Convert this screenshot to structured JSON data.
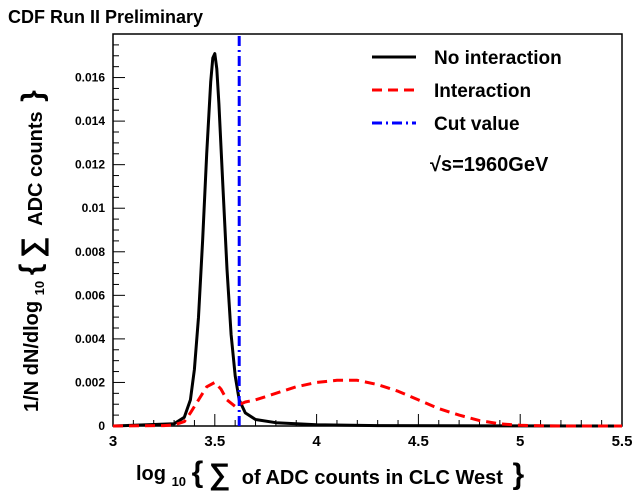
{
  "chart_data": {
    "type": "line",
    "title": "CDF Run II Preliminary",
    "annotation": "√s=1960GeV",
    "xlabel": {
      "prefix": "log",
      "sub": "10",
      "sigma": "∑",
      "body": "of ADC counts in CLC West"
    },
    "ylabel": {
      "prefix": "1/N dN/dlog",
      "sub": "10",
      "sigma": "∑",
      "body": "ADC counts"
    },
    "xlim": [
      3,
      5.5
    ],
    "ylim": [
      0,
      0.018
    ],
    "x_ticks": [
      3,
      3.5,
      4,
      4.5,
      5,
      5.5
    ],
    "x_tick_labels": [
      "3",
      "3.5",
      "4",
      "4.5",
      "5",
      "5.5"
    ],
    "y_ticks": [
      0,
      0.002,
      0.004,
      0.006,
      0.008,
      0.01,
      0.012,
      0.014,
      0.016
    ],
    "y_tick_labels": [
      "0",
      "0.002",
      "0.004",
      "0.006",
      "0.008",
      "0.01",
      "0.012",
      "0.014",
      "0.016"
    ],
    "legend_position": "top-right",
    "series": [
      {
        "name": "No interaction",
        "color": "#000000",
        "style": "solid",
        "x": [
          3.0,
          3.3,
          3.35,
          3.38,
          3.4,
          3.42,
          3.44,
          3.46,
          3.48,
          3.49,
          3.5,
          3.51,
          3.52,
          3.54,
          3.56,
          3.58,
          3.6,
          3.62,
          3.65,
          3.7,
          3.8,
          4.0,
          4.3,
          5.5
        ],
        "y": [
          0,
          0.0001,
          0.0004,
          0.0012,
          0.0026,
          0.005,
          0.0085,
          0.0125,
          0.0158,
          0.0169,
          0.0171,
          0.0164,
          0.0148,
          0.011,
          0.0072,
          0.0042,
          0.0023,
          0.0012,
          0.0006,
          0.0003,
          0.00015,
          6e-05,
          2e-05,
          0
        ]
      },
      {
        "name": "Interaction",
        "color": "#ff0000",
        "style": "dashed",
        "x": [
          3.0,
          3.25,
          3.3,
          3.35,
          3.38,
          3.42,
          3.46,
          3.5,
          3.53,
          3.56,
          3.6,
          3.65,
          3.7,
          3.8,
          3.9,
          4.0,
          4.1,
          4.2,
          4.3,
          4.4,
          4.5,
          4.6,
          4.7,
          4.8,
          4.9,
          5.0,
          5.1,
          5.2,
          5.5
        ],
        "y": [
          0,
          2e-05,
          5e-05,
          0.0002,
          0.0006,
          0.0012,
          0.0018,
          0.002,
          0.0017,
          0.0012,
          0.0009,
          0.0011,
          0.0012,
          0.0015,
          0.0018,
          0.002,
          0.0021,
          0.0021,
          0.0019,
          0.0016,
          0.0012,
          0.0008,
          0.0005,
          0.00025,
          0.0001,
          3e-05,
          1e-05,
          0,
          0
        ]
      },
      {
        "name": "Cut value",
        "color": "#0000ff",
        "style": "dashdot",
        "x": [
          3.62,
          3.62
        ],
        "y": [
          0,
          0.018
        ]
      }
    ]
  }
}
